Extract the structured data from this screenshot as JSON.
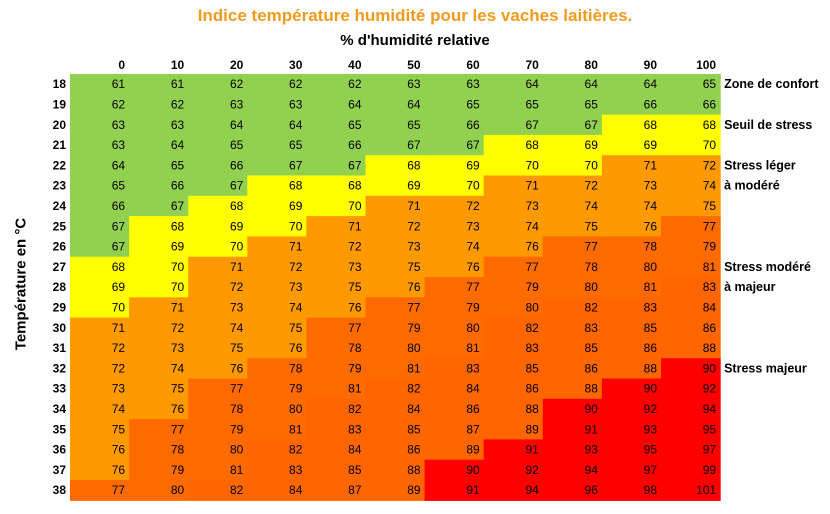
{
  "chart_data": {
    "type": "heatmap",
    "title": "Indice température humidité pour les vaches laitières.",
    "xlabel": "% d'humidité relative",
    "ylabel": "Température en °C",
    "x": [
      0,
      10,
      20,
      30,
      40,
      50,
      60,
      70,
      80,
      90,
      100
    ],
    "y": [
      18,
      19,
      20,
      21,
      22,
      23,
      24,
      25,
      26,
      27,
      28,
      29,
      30,
      31,
      32,
      33,
      34,
      35,
      36,
      37,
      38
    ],
    "values": [
      [
        61,
        61,
        62,
        62,
        62,
        63,
        63,
        64,
        64,
        64,
        65
      ],
      [
        62,
        62,
        63,
        63,
        64,
        64,
        65,
        65,
        65,
        66,
        66
      ],
      [
        63,
        63,
        64,
        64,
        65,
        65,
        66,
        67,
        67,
        68,
        68
      ],
      [
        63,
        64,
        65,
        65,
        66,
        67,
        67,
        68,
        69,
        69,
        70
      ],
      [
        64,
        65,
        66,
        67,
        67,
        68,
        69,
        70,
        70,
        71,
        72
      ],
      [
        65,
        66,
        67,
        68,
        68,
        69,
        70,
        71,
        72,
        73,
        74
      ],
      [
        66,
        67,
        68,
        69,
        70,
        71,
        72,
        73,
        74,
        74,
        75
      ],
      [
        67,
        68,
        69,
        70,
        71,
        72,
        73,
        74,
        75,
        76,
        77
      ],
      [
        67,
        69,
        70,
        71,
        72,
        73,
        74,
        76,
        77,
        78,
        79
      ],
      [
        68,
        70,
        71,
        72,
        73,
        75,
        76,
        77,
        78,
        80,
        81
      ],
      [
        69,
        70,
        72,
        73,
        75,
        76,
        77,
        79,
        80,
        81,
        83
      ],
      [
        70,
        71,
        73,
        74,
        76,
        77,
        79,
        80,
        82,
        83,
        84
      ],
      [
        71,
        72,
        74,
        75,
        77,
        79,
        80,
        82,
        83,
        85,
        86
      ],
      [
        72,
        73,
        75,
        76,
        78,
        80,
        81,
        83,
        85,
        86,
        88
      ],
      [
        72,
        74,
        76,
        78,
        79,
        81,
        83,
        85,
        86,
        88,
        90
      ],
      [
        73,
        75,
        77,
        79,
        81,
        82,
        84,
        86,
        88,
        90,
        92
      ],
      [
        74,
        76,
        78,
        80,
        82,
        84,
        86,
        88,
        90,
        92,
        94
      ],
      [
        75,
        77,
        79,
        81,
        83,
        85,
        87,
        89,
        91,
        93,
        95
      ],
      [
        76,
        78,
        80,
        82,
        84,
        86,
        89,
        91,
        93,
        95,
        97
      ],
      [
        76,
        79,
        81,
        83,
        85,
        88,
        90,
        92,
        94,
        97,
        99
      ],
      [
        77,
        80,
        82,
        84,
        87,
        89,
        91,
        94,
        96,
        98,
        101
      ]
    ],
    "color_bands": [
      {
        "min": 0,
        "max": 67,
        "color": "#92d050"
      },
      {
        "min": 68,
        "max": 70,
        "color": "#ffff00"
      },
      {
        "min": 71,
        "max": 76,
        "color": "#ff9900"
      },
      {
        "min": 77,
        "max": 81,
        "color": "#ff6b00"
      },
      {
        "min": 82,
        "max": 89,
        "color": "#ff6600"
      },
      {
        "min": 90,
        "max": 200,
        "color": "#ff0000"
      }
    ],
    "zone_labels": [
      {
        "row": 0,
        "lines": [
          "Zone de confort"
        ]
      },
      {
        "row": 2,
        "lines": [
          "Seuil de stress"
        ]
      },
      {
        "row": 4,
        "lines": [
          "Stress léger",
          "à modéré"
        ]
      },
      {
        "row": 9,
        "lines": [
          "Stress modéré",
          "à majeur"
        ]
      },
      {
        "row": 14,
        "lines": [
          "Stress majeur"
        ]
      }
    ]
  }
}
